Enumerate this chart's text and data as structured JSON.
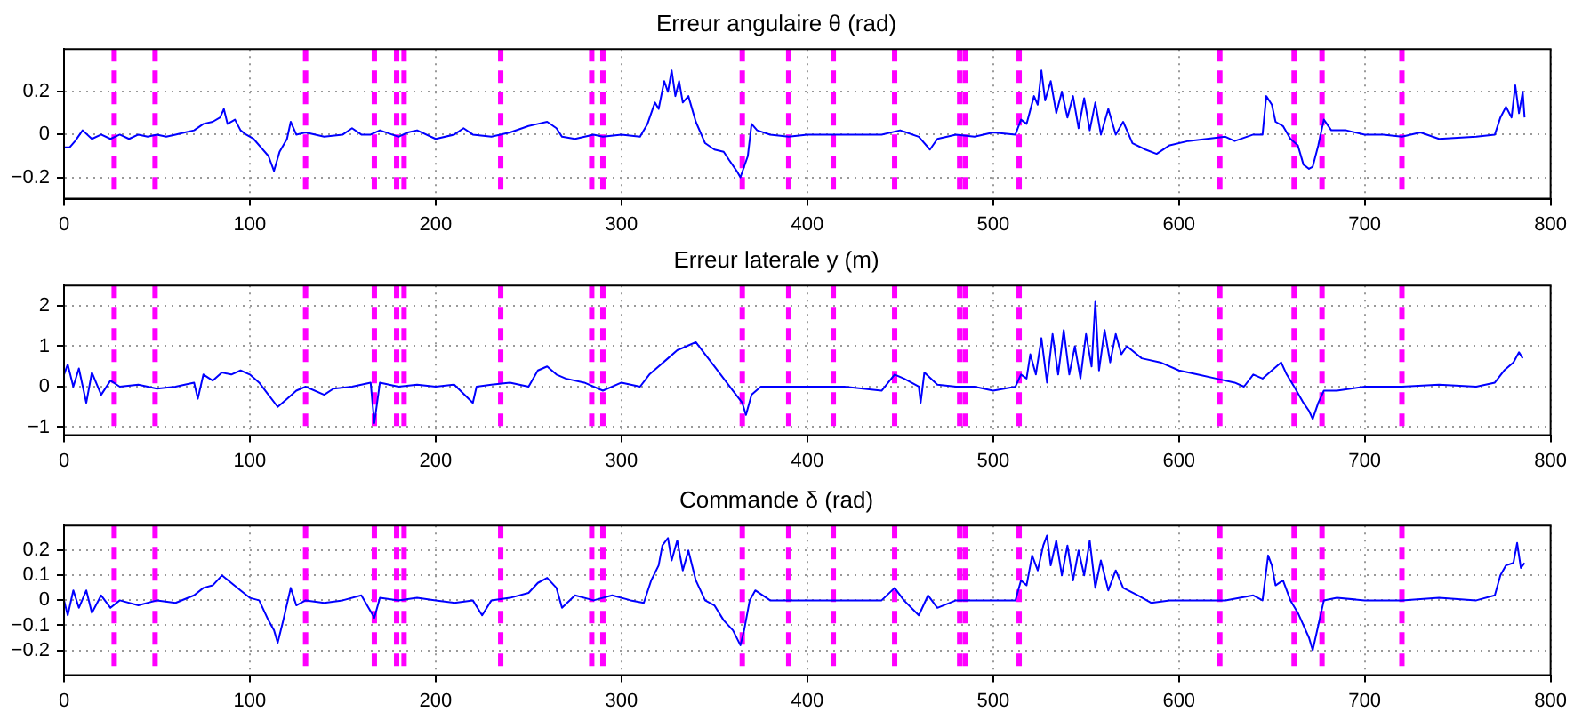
{
  "chart_data": [
    {
      "type": "line",
      "title": "Erreur angulaire θ (rad)",
      "xlim": [
        0,
        800
      ],
      "xticks": [
        0,
        100,
        200,
        300,
        400,
        500,
        600,
        700,
        800
      ],
      "ylim": [
        -0.3,
        0.4
      ],
      "yticks": [
        -0.2,
        0,
        0.2
      ],
      "grid": true,
      "series": [
        {
          "color": "#0000ff",
          "x": [
            0,
            3,
            6,
            10,
            15,
            20,
            25,
            30,
            35,
            40,
            45,
            50,
            55,
            60,
            65,
            70,
            75,
            80,
            84,
            86,
            88,
            92,
            95,
            98,
            102,
            106,
            110,
            113,
            116,
            120,
            122,
            125,
            130,
            140,
            150,
            155,
            160,
            165,
            170,
            180,
            185,
            190,
            200,
            210,
            215,
            220,
            230,
            240,
            250,
            255,
            260,
            265,
            268,
            275,
            285,
            290,
            300,
            310,
            314,
            318,
            320,
            323,
            325,
            327,
            329,
            331,
            333,
            336,
            340,
            345,
            350,
            355,
            358,
            362,
            364,
            366,
            368,
            370,
            373,
            380,
            390,
            400,
            420,
            440,
            450,
            460,
            466,
            470,
            480,
            490,
            500,
            512,
            515,
            518,
            522,
            524,
            526,
            528,
            531,
            534,
            537,
            540,
            543,
            546,
            549,
            552,
            555,
            558,
            562,
            566,
            570,
            575,
            582,
            588,
            595,
            605,
            615,
            625,
            630,
            640,
            645,
            647,
            650,
            652,
            656,
            660,
            664,
            667,
            670,
            672,
            675,
            678,
            682,
            690,
            700,
            710,
            720,
            730,
            740,
            760,
            770,
            773,
            776,
            779,
            781,
            783,
            785,
            786
          ],
          "values": [
            -0.06,
            -0.06,
            -0.03,
            0.02,
            -0.02,
            0,
            -0.02,
            0,
            -0.02,
            0,
            -0.01,
            0,
            -0.01,
            0,
            0.01,
            0.02,
            0.05,
            0.06,
            0.08,
            0.12,
            0.05,
            0.07,
            0.02,
            0,
            -0.02,
            -0.06,
            -0.1,
            -0.17,
            -0.08,
            -0.02,
            0.06,
            0,
            0.01,
            -0.01,
            0,
            0.03,
            0,
            0,
            0.02,
            -0.01,
            0.01,
            0.02,
            -0.02,
            0,
            0.03,
            0,
            -0.01,
            0.01,
            0.04,
            0.05,
            0.06,
            0.03,
            -0.01,
            -0.02,
            0,
            -0.01,
            0,
            -0.01,
            0.05,
            0.15,
            0.12,
            0.25,
            0.2,
            0.3,
            0.18,
            0.25,
            0.15,
            0.18,
            0.06,
            -0.04,
            -0.07,
            -0.08,
            -0.12,
            -0.17,
            -0.2,
            -0.15,
            -0.1,
            0.05,
            0.02,
            0,
            -0.01,
            0,
            0,
            0,
            0.02,
            -0.01,
            -0.07,
            -0.02,
            0,
            -0.01,
            0.01,
            0,
            0.07,
            0.05,
            0.18,
            0.14,
            0.3,
            0.16,
            0.25,
            0.1,
            0.2,
            0.08,
            0.18,
            0.03,
            0.17,
            0.02,
            0.15,
            0,
            0.12,
            0,
            0.06,
            -0.04,
            -0.07,
            -0.09,
            -0.05,
            -0.03,
            -0.02,
            -0.01,
            -0.03,
            0,
            0,
            0.18,
            0.14,
            0.06,
            0.04,
            -0.02,
            -0.05,
            -0.14,
            -0.16,
            -0.15,
            -0.05,
            0.07,
            0.02,
            0.02,
            0,
            0,
            -0.01,
            0.01,
            -0.02,
            -0.01,
            0,
            0.08,
            0.13,
            0.08,
            0.23,
            0.1,
            0.2,
            0.08
          ]
        }
      ],
      "ref_lines": [
        {
          "axis": "x",
          "value": 27,
          "color": "#ff00ff",
          "line_style": "dashed"
        },
        {
          "axis": "x",
          "value": 49,
          "color": "#ff00ff",
          "line_style": "dashed"
        },
        {
          "axis": "x",
          "value": 130,
          "color": "#ff00ff",
          "line_style": "dashed"
        },
        {
          "axis": "x",
          "value": 167,
          "color": "#ff00ff",
          "line_style": "dashed"
        },
        {
          "axis": "x",
          "value": 179,
          "color": "#ff00ff",
          "line_style": "dashed"
        },
        {
          "axis": "x",
          "value": 183,
          "color": "#ff00ff",
          "line_style": "dashed"
        },
        {
          "axis": "x",
          "value": 235,
          "color": "#ff00ff",
          "line_style": "dashed"
        },
        {
          "axis": "x",
          "value": 284,
          "color": "#ff00ff",
          "line_style": "dashed"
        },
        {
          "axis": "x",
          "value": 290,
          "color": "#ff00ff",
          "line_style": "dashed"
        },
        {
          "axis": "x",
          "value": 365,
          "color": "#ff00ff",
          "line_style": "dashed"
        },
        {
          "axis": "x",
          "value": 390,
          "color": "#ff00ff",
          "line_style": "dashed"
        },
        {
          "axis": "x",
          "value": 414,
          "color": "#ff00ff",
          "line_style": "dashed"
        },
        {
          "axis": "x",
          "value": 447,
          "color": "#ff00ff",
          "line_style": "dashed"
        },
        {
          "axis": "x",
          "value": 482,
          "color": "#ff00ff",
          "line_style": "dashed"
        },
        {
          "axis": "x",
          "value": 485,
          "color": "#ff00ff",
          "line_style": "dashed"
        },
        {
          "axis": "x",
          "value": 514,
          "color": "#ff00ff",
          "line_style": "dashed"
        },
        {
          "axis": "x",
          "value": 622,
          "color": "#ff00ff",
          "line_style": "dashed"
        },
        {
          "axis": "x",
          "value": 662,
          "color": "#ff00ff",
          "line_style": "dashed"
        },
        {
          "axis": "x",
          "value": 677,
          "color": "#ff00ff",
          "line_style": "dashed"
        },
        {
          "axis": "x",
          "value": 720,
          "color": "#ff00ff",
          "line_style": "dashed"
        }
      ]
    },
    {
      "type": "line",
      "title": "Erreur laterale y (m)",
      "xlim": [
        0,
        800
      ],
      "xticks": [
        0,
        100,
        200,
        300,
        400,
        500,
        600,
        700,
        800
      ],
      "ylim": [
        -1.2,
        2.5
      ],
      "yticks": [
        -1,
        0,
        1,
        2
      ],
      "grid": true,
      "series": [
        {
          "color": "#0000ff",
          "x": [
            0,
            2,
            5,
            8,
            12,
            15,
            20,
            25,
            30,
            40,
            50,
            60,
            70,
            72,
            75,
            80,
            85,
            90,
            95,
            100,
            105,
            110,
            115,
            120,
            125,
            130,
            140,
            145,
            155,
            165,
            167,
            170,
            180,
            190,
            200,
            210,
            220,
            222,
            230,
            240,
            250,
            255,
            260,
            265,
            270,
            280,
            290,
            300,
            310,
            315,
            320,
            325,
            330,
            335,
            340,
            345,
            350,
            355,
            360,
            365,
            367,
            370,
            375,
            385,
            400,
            420,
            440,
            447,
            452,
            460,
            461,
            463,
            470,
            480,
            490,
            500,
            512,
            515,
            518,
            520,
            523,
            526,
            529,
            532,
            535,
            538,
            541,
            544,
            547,
            550,
            553,
            555,
            557,
            560,
            563,
            566,
            569,
            572,
            580,
            590,
            600,
            610,
            620,
            630,
            635,
            640,
            645,
            650,
            655,
            658,
            662,
            667,
            670,
            672,
            675,
            678,
            685,
            700,
            720,
            740,
            760,
            770,
            775,
            780,
            783,
            785
          ],
          "values": [
            0.3,
            0.55,
            0,
            0.45,
            -0.4,
            0.35,
            -0.2,
            0.15,
            0,
            0.05,
            -0.05,
            0,
            0.1,
            -0.3,
            0.3,
            0.15,
            0.35,
            0.3,
            0.4,
            0.3,
            0.1,
            -0.2,
            -0.5,
            -0.3,
            -0.1,
            0,
            -0.2,
            -0.05,
            0,
            0.1,
            -0.9,
            0.1,
            0,
            0.05,
            0,
            0.05,
            -0.4,
            0,
            0.05,
            0.1,
            0,
            0.4,
            0.5,
            0.3,
            0.2,
            0.1,
            -0.1,
            0.1,
            0,
            0.3,
            0.5,
            0.7,
            0.9,
            1,
            1.1,
            0.8,
            0.5,
            0.2,
            -0.1,
            -0.4,
            -0.7,
            -0.2,
            0,
            0,
            0,
            0,
            -0.1,
            0.3,
            0.2,
            0,
            -0.4,
            0.35,
            0.05,
            0,
            0,
            -0.1,
            0,
            0.3,
            0.2,
            0.8,
            0.3,
            1.2,
            0.1,
            1.3,
            0.3,
            1.4,
            0.3,
            1,
            0.2,
            1.3,
            0.5,
            2.1,
            0.4,
            1.4,
            0.6,
            1.3,
            0.8,
            1,
            0.7,
            0.6,
            0.4,
            0.3,
            0.2,
            0.1,
            0,
            0.3,
            0.2,
            0.4,
            0.6,
            0.3,
            0,
            -0.4,
            -0.6,
            -0.8,
            -0.4,
            -0.1,
            -0.1,
            0,
            0,
            0.05,
            0,
            0.1,
            0.4,
            0.6,
            0.85,
            0.7
          ]
        }
      ],
      "ref_lines": [
        {
          "axis": "x",
          "value": 27,
          "color": "#ff00ff",
          "line_style": "dashed"
        },
        {
          "axis": "x",
          "value": 49,
          "color": "#ff00ff",
          "line_style": "dashed"
        },
        {
          "axis": "x",
          "value": 130,
          "color": "#ff00ff",
          "line_style": "dashed"
        },
        {
          "axis": "x",
          "value": 167,
          "color": "#ff00ff",
          "line_style": "dashed"
        },
        {
          "axis": "x",
          "value": 179,
          "color": "#ff00ff",
          "line_style": "dashed"
        },
        {
          "axis": "x",
          "value": 183,
          "color": "#ff00ff",
          "line_style": "dashed"
        },
        {
          "axis": "x",
          "value": 235,
          "color": "#ff00ff",
          "line_style": "dashed"
        },
        {
          "axis": "x",
          "value": 284,
          "color": "#ff00ff",
          "line_style": "dashed"
        },
        {
          "axis": "x",
          "value": 290,
          "color": "#ff00ff",
          "line_style": "dashed"
        },
        {
          "axis": "x",
          "value": 365,
          "color": "#ff00ff",
          "line_style": "dashed"
        },
        {
          "axis": "x",
          "value": 390,
          "color": "#ff00ff",
          "line_style": "dashed"
        },
        {
          "axis": "x",
          "value": 414,
          "color": "#ff00ff",
          "line_style": "dashed"
        },
        {
          "axis": "x",
          "value": 447,
          "color": "#ff00ff",
          "line_style": "dashed"
        },
        {
          "axis": "x",
          "value": 482,
          "color": "#ff00ff",
          "line_style": "dashed"
        },
        {
          "axis": "x",
          "value": 485,
          "color": "#ff00ff",
          "line_style": "dashed"
        },
        {
          "axis": "x",
          "value": 514,
          "color": "#ff00ff",
          "line_style": "dashed"
        },
        {
          "axis": "x",
          "value": 622,
          "color": "#ff00ff",
          "line_style": "dashed"
        },
        {
          "axis": "x",
          "value": 662,
          "color": "#ff00ff",
          "line_style": "dashed"
        },
        {
          "axis": "x",
          "value": 677,
          "color": "#ff00ff",
          "line_style": "dashed"
        },
        {
          "axis": "x",
          "value": 720,
          "color": "#ff00ff",
          "line_style": "dashed"
        }
      ]
    },
    {
      "type": "line",
      "title": "Commande δ (rad)",
      "xlim": [
        0,
        800
      ],
      "xticks": [
        0,
        100,
        200,
        300,
        400,
        500,
        600,
        700,
        800
      ],
      "ylim": [
        -0.3,
        0.3
      ],
      "yticks": [
        -0.2,
        -0.1,
        0,
        0.1,
        0.2
      ],
      "grid": true,
      "series": [
        {
          "color": "#0000ff",
          "x": [
            0,
            2,
            5,
            8,
            12,
            15,
            20,
            25,
            30,
            40,
            50,
            60,
            70,
            75,
            80,
            85,
            90,
            95,
            100,
            105,
            110,
            113,
            115,
            118,
            122,
            125,
            130,
            140,
            150,
            160,
            167,
            170,
            180,
            190,
            200,
            210,
            220,
            225,
            230,
            240,
            250,
            255,
            260,
            265,
            268,
            275,
            285,
            295,
            305,
            312,
            316,
            320,
            322,
            325,
            327,
            330,
            333,
            336,
            340,
            345,
            350,
            355,
            360,
            364,
            366,
            369,
            372,
            380,
            400,
            420,
            440,
            447,
            452,
            460,
            465,
            470,
            480,
            500,
            512,
            515,
            518,
            521,
            524,
            527,
            529,
            531,
            534,
            537,
            540,
            543,
            546,
            549,
            552,
            555,
            558,
            562,
            566,
            570,
            578,
            585,
            595,
            610,
            625,
            640,
            645,
            648,
            650,
            652,
            656,
            660,
            664,
            667,
            670,
            672,
            675,
            678,
            685,
            700,
            720,
            740,
            760,
            770,
            773,
            776,
            780,
            782,
            784,
            786
          ],
          "values": [
            0,
            -0.06,
            0.04,
            -0.03,
            0.04,
            -0.05,
            0.02,
            -0.03,
            0,
            -0.02,
            0,
            -0.01,
            0.02,
            0.05,
            0.06,
            0.1,
            0.07,
            0.04,
            0.01,
            0,
            -0.08,
            -0.12,
            -0.17,
            -0.08,
            0.05,
            -0.02,
            0,
            -0.01,
            0,
            0.02,
            -0.07,
            0.01,
            0,
            0.01,
            0,
            -0.01,
            0,
            -0.06,
            0,
            0.01,
            0.03,
            0.07,
            0.09,
            0.05,
            -0.03,
            0.02,
            0,
            0.02,
            0,
            -0.01,
            0.08,
            0.14,
            0.22,
            0.25,
            0.16,
            0.24,
            0.12,
            0.2,
            0.08,
            0,
            -0.02,
            -0.08,
            -0.12,
            -0.18,
            -0.12,
            0,
            0.04,
            0,
            0,
            0,
            0,
            0.05,
            0,
            -0.06,
            0.02,
            -0.03,
            0,
            0,
            0,
            0.08,
            0.06,
            0.18,
            0.12,
            0.22,
            0.26,
            0.14,
            0.24,
            0.1,
            0.22,
            0.08,
            0.2,
            0.1,
            0.24,
            0.05,
            0.16,
            0.04,
            0.12,
            0.05,
            0.02,
            -0.01,
            0,
            0,
            0,
            0.02,
            0,
            0.18,
            0.14,
            0.06,
            0.08,
            0,
            -0.05,
            -0.1,
            -0.15,
            -0.2,
            -0.1,
            0,
            0.01,
            0,
            0,
            0.01,
            0,
            0.02,
            0.1,
            0.14,
            0.15,
            0.23,
            0.13,
            0.15
          ]
        }
      ],
      "ref_lines": [
        {
          "axis": "x",
          "value": 27,
          "color": "#ff00ff",
          "line_style": "dashed"
        },
        {
          "axis": "x",
          "value": 49,
          "color": "#ff00ff",
          "line_style": "dashed"
        },
        {
          "axis": "x",
          "value": 130,
          "color": "#ff00ff",
          "line_style": "dashed"
        },
        {
          "axis": "x",
          "value": 167,
          "color": "#ff00ff",
          "line_style": "dashed"
        },
        {
          "axis": "x",
          "value": 179,
          "color": "#ff00ff",
          "line_style": "dashed"
        },
        {
          "axis": "x",
          "value": 183,
          "color": "#ff00ff",
          "line_style": "dashed"
        },
        {
          "axis": "x",
          "value": 235,
          "color": "#ff00ff",
          "line_style": "dashed"
        },
        {
          "axis": "x",
          "value": 284,
          "color": "#ff00ff",
          "line_style": "dashed"
        },
        {
          "axis": "x",
          "value": 290,
          "color": "#ff00ff",
          "line_style": "dashed"
        },
        {
          "axis": "x",
          "value": 365,
          "color": "#ff00ff",
          "line_style": "dashed"
        },
        {
          "axis": "x",
          "value": 390,
          "color": "#ff00ff",
          "line_style": "dashed"
        },
        {
          "axis": "x",
          "value": 414,
          "color": "#ff00ff",
          "line_style": "dashed"
        },
        {
          "axis": "x",
          "value": 447,
          "color": "#ff00ff",
          "line_style": "dashed"
        },
        {
          "axis": "x",
          "value": 482,
          "color": "#ff00ff",
          "line_style": "dashed"
        },
        {
          "axis": "x",
          "value": 485,
          "color": "#ff00ff",
          "line_style": "dashed"
        },
        {
          "axis": "x",
          "value": 514,
          "color": "#ff00ff",
          "line_style": "dashed"
        },
        {
          "axis": "x",
          "value": 622,
          "color": "#ff00ff",
          "line_style": "dashed"
        },
        {
          "axis": "x",
          "value": 662,
          "color": "#ff00ff",
          "line_style": "dashed"
        },
        {
          "axis": "x",
          "value": 677,
          "color": "#ff00ff",
          "line_style": "dashed"
        },
        {
          "axis": "x",
          "value": 720,
          "color": "#ff00ff",
          "line_style": "dashed"
        }
      ]
    }
  ]
}
